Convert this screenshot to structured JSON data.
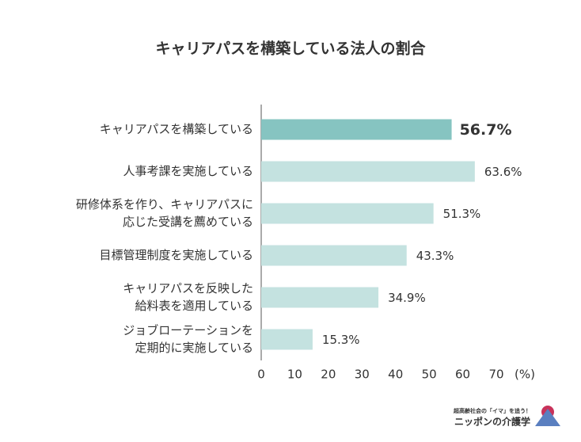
{
  "chart_data": {
    "type": "barh",
    "title": "キャリアパスを構築している法人の割合",
    "categories": [
      [
        "キャリアパスを構築している"
      ],
      [
        "人事考課を実施している"
      ],
      [
        "研修体系を作り、キャリアパスに",
        "応じた受講を薦めている"
      ],
      [
        "目標管理制度を実施している"
      ],
      [
        "キャリアパスを反映した",
        "給料表を適用している"
      ],
      [
        "ジョブローテーションを",
        "定期的に実施している"
      ]
    ],
    "values": [
      56.7,
      63.6,
      51.3,
      43.3,
      34.9,
      15.3
    ],
    "value_labels": [
      "56.7%",
      "63.6%",
      "51.3%",
      "43.3%",
      "34.9%",
      "15.3%"
    ],
    "colors": [
      "#86c4c1",
      "#c4e2e0",
      "#c4e2e0",
      "#c4e2e0",
      "#c4e2e0",
      "#c4e2e0"
    ],
    "highlight": 0,
    "xlim": [
      0,
      70
    ],
    "xticks": [
      0,
      10,
      20,
      30,
      40,
      50,
      60,
      70
    ],
    "x_unit": "(%)"
  },
  "logo": {
    "tagline": "超高齢社会の「イマ」を追う！",
    "name": "ニッポンの介護学"
  }
}
